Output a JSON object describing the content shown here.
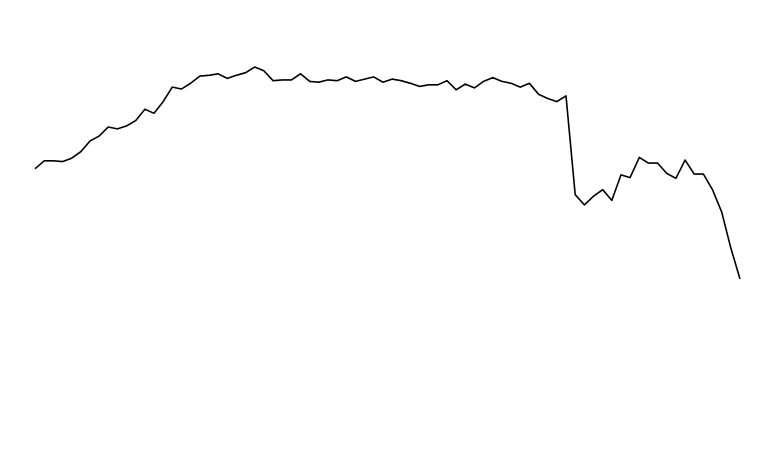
{
  "chart_data": {
    "type": "line",
    "title": "",
    "xlabel": "",
    "ylabel": "",
    "grid": false,
    "axes_visible": false,
    "xlim": [
      0,
      77
    ],
    "ylim": [
      0,
      100
    ],
    "line_color": "#000000",
    "background": "#ffffff",
    "x": [
      0,
      1,
      2,
      3,
      4,
      5,
      6,
      7,
      8,
      9,
      10,
      11,
      12,
      13,
      14,
      15,
      16,
      17,
      18,
      19,
      20,
      21,
      22,
      23,
      24,
      25,
      26,
      27,
      28,
      29,
      30,
      31,
      32,
      33,
      34,
      35,
      36,
      37,
      38,
      39,
      40,
      41,
      42,
      43,
      44,
      45,
      46,
      47,
      48,
      49,
      50,
      51,
      52,
      53,
      54,
      55,
      56,
      57,
      58,
      59,
      60,
      61,
      62,
      63,
      64,
      65,
      66,
      67,
      68,
      69,
      70,
      71,
      72,
      73,
      74,
      75,
      76,
      77
    ],
    "y": [
      66.1,
      68.2,
      68.2,
      68.0,
      68.9,
      70.6,
      73.4,
      74.7,
      77.1,
      76.6,
      77.4,
      78.8,
      81.8,
      80.7,
      83.8,
      87.6,
      87.1,
      88.6,
      90.5,
      90.7,
      91.1,
      89.9,
      90.7,
      91.4,
      92.9,
      91.9,
      89.3,
      89.5,
      89.5,
      91.1,
      89.1,
      88.9,
      89.5,
      89.3,
      90.3,
      89.1,
      89.7,
      90.3,
      88.9,
      89.7,
      89.3,
      88.6,
      87.8,
      88.2,
      88.2,
      89.3,
      86.9,
      88.4,
      87.4,
      89.1,
      90.1,
      89.1,
      88.6,
      87.6,
      88.6,
      85.7,
      84.6,
      83.8,
      85.3,
      59.3,
      56.6,
      58.9,
      60.6,
      57.8,
      64.5,
      63.8,
      69.1,
      67.6,
      67.6,
      64.9,
      63.6,
      68.4,
      64.7,
      64.7,
      60.6,
      54.7,
      45.3,
      37.1
    ]
  }
}
